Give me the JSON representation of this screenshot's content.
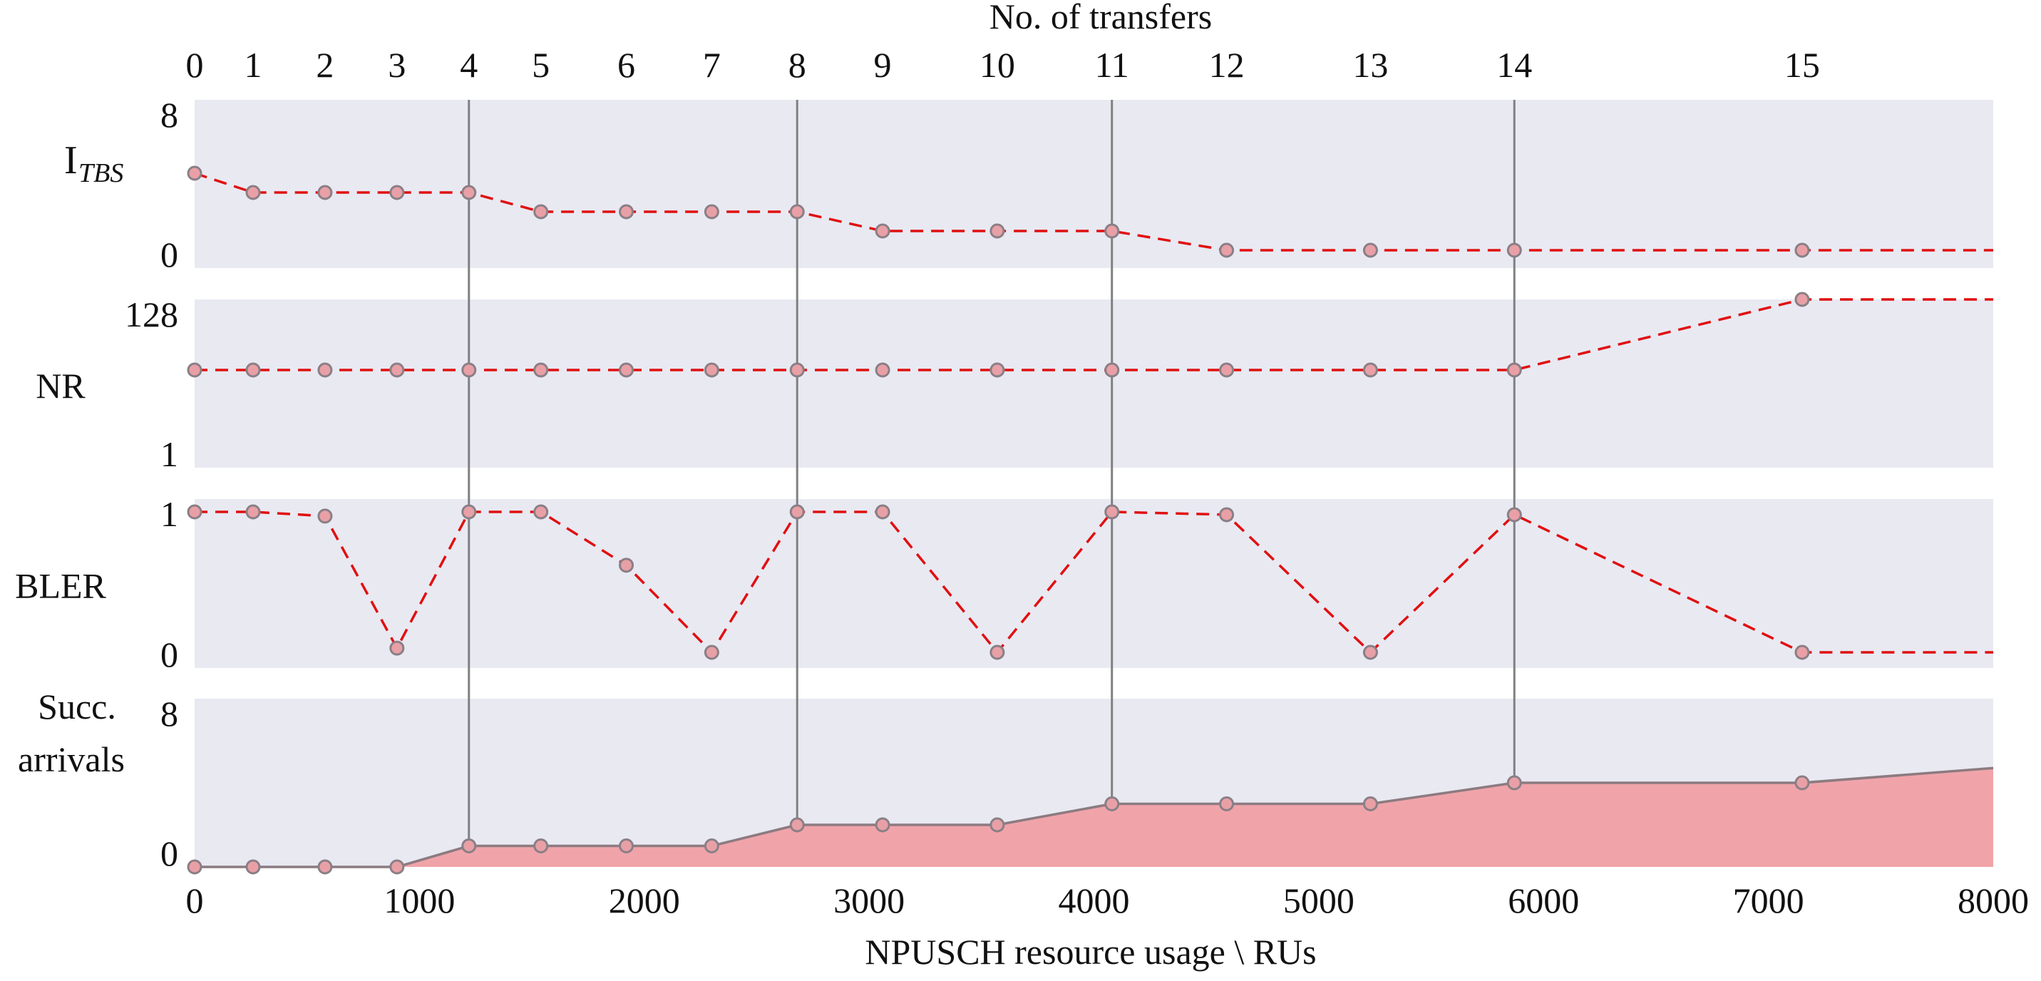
{
  "chart_data": {
    "type": "line",
    "x_axis": {
      "label": "NPUSCH resource usage \\ RUs",
      "range": [
        0,
        8000
      ],
      "ticks": [
        0,
        1000,
        2000,
        3000,
        4000,
        5000,
        6000,
        7000,
        8000
      ]
    },
    "top_axis": {
      "label": "No. of transfers",
      "ticks": [
        {
          "label": "0",
          "x": 0
        },
        {
          "label": "1",
          "x": 260
        },
        {
          "label": "2",
          "x": 580
        },
        {
          "label": "3",
          "x": 900
        },
        {
          "label": "4",
          "x": 1220
        },
        {
          "label": "5",
          "x": 1540
        },
        {
          "label": "6",
          "x": 1920
        },
        {
          "label": "7",
          "x": 2300
        },
        {
          "label": "8",
          "x": 2680
        },
        {
          "label": "9",
          "x": 3060
        },
        {
          "label": "10",
          "x": 3570
        },
        {
          "label": "11",
          "x": 4080
        },
        {
          "label": "12",
          "x": 4590
        },
        {
          "label": "13",
          "x": 5230
        },
        {
          "label": "14",
          "x": 5870
        },
        {
          "label": "15",
          "x": 7150
        }
      ]
    },
    "vertical_markers": [
      1220,
      2680,
      4080,
      5870
    ],
    "x": [
      0,
      260,
      580,
      900,
      1220,
      1540,
      1920,
      2300,
      2680,
      3060,
      3570,
      4080,
      4590,
      5230,
      5870,
      7150
    ],
    "grid": false,
    "panels": [
      {
        "id": "itbs",
        "label": "I",
        "label_subscript": "TBS",
        "ylim": [
          0,
          8
        ],
        "yticks": [
          "8",
          "0"
        ],
        "style": "dashed",
        "values": [
          4,
          3,
          3,
          3,
          3,
          2,
          2,
          2,
          2,
          1,
          1,
          1,
          0,
          0,
          0,
          0
        ],
        "extend_to": 8000
      },
      {
        "id": "nr",
        "label": "NR",
        "label_subscript": "",
        "scale": "log2",
        "ylim": [
          1,
          128
        ],
        "yticks": [
          "128",
          "1"
        ],
        "style": "dashed",
        "values": [
          16,
          16,
          16,
          16,
          16,
          16,
          16,
          16,
          16,
          16,
          16,
          16,
          16,
          16,
          16,
          128
        ],
        "extend_to": 8000
      },
      {
        "id": "bler",
        "label": "BLER",
        "label_subscript": "",
        "ylim": [
          0,
          1
        ],
        "yticks": [
          "1",
          "0"
        ],
        "style": "dashed",
        "values": [
          1.0,
          1.0,
          0.97,
          0.03,
          1.0,
          1.0,
          0.62,
          0.0,
          1.0,
          1.0,
          0.0,
          1.0,
          0.98,
          0.0,
          0.98,
          0.0
        ],
        "extend_to": 8000
      },
      {
        "id": "succ",
        "label": "Succ.",
        "label_line2": "arrivals",
        "label_subscript": "",
        "ylim": [
          0,
          8
        ],
        "yticks": [
          "8",
          "0"
        ],
        "style": "area",
        "values": [
          0,
          0,
          0,
          0,
          1,
          1,
          1,
          1,
          2,
          2,
          2,
          3,
          3,
          3,
          4,
          4
        ],
        "end_value": 4.7,
        "extend_to": 8000
      }
    ]
  },
  "colors": {
    "panel_bg": "#e9e9f2",
    "line": "#e01010",
    "marker_fill": "#e8a0a6",
    "marker_edge": "#8a7f86",
    "area_fill": "#f0a4aa",
    "area_edge": "#8c7b80",
    "vline": "#808080"
  }
}
